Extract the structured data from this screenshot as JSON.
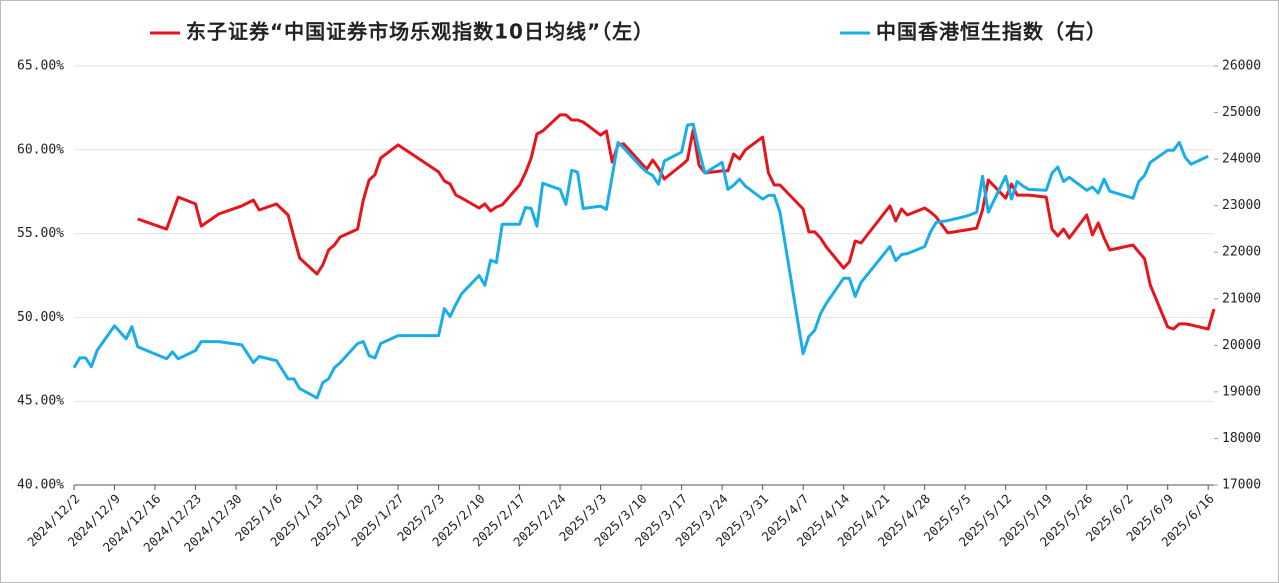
{
  "chart_data": {
    "type": "line",
    "x": [
      "2024/12/2",
      "2024/12/3",
      "2024/12/4",
      "2024/12/5",
      "2024/12/6",
      "2024/12/9",
      "2024/12/11",
      "2024/12/12",
      "2024/12/13",
      "2024/12/18",
      "2024/12/19",
      "2024/12/20",
      "2024/12/23",
      "2024/12/24",
      "2024/12/27",
      "2024/12/31",
      "2025/1/2",
      "2025/1/3",
      "2025/1/6",
      "2025/1/8",
      "2025/1/9",
      "2025/1/10",
      "2025/1/13",
      "2025/1/14",
      "2025/1/15",
      "2025/1/16",
      "2025/1/17",
      "2025/1/20",
      "2025/1/21",
      "2025/1/22",
      "2025/1/23",
      "2025/1/24",
      "2025/1/27",
      "2025/2/3",
      "2025/2/4",
      "2025/2/5",
      "2025/2/6",
      "2025/2/7",
      "2025/2/10",
      "2025/2/11",
      "2025/2/12",
      "2025/2/13",
      "2025/2/14",
      "2025/2/17",
      "2025/2/18",
      "2025/2/19",
      "2025/2/20",
      "2025/2/21",
      "2025/2/24",
      "2025/2/25",
      "2025/2/26",
      "2025/2/27",
      "2025/2/28",
      "2025/3/3",
      "2025/3/4",
      "2025/3/5",
      "2025/3/6",
      "2025/3/7",
      "2025/3/10",
      "2025/3/11",
      "2025/3/12",
      "2025/3/13",
      "2025/3/14",
      "2025/3/17",
      "2025/3/18",
      "2025/3/19",
      "2025/3/20",
      "2025/3/21",
      "2025/3/24",
      "2025/3/25",
      "2025/3/26",
      "2025/3/27",
      "2025/3/28",
      "2025/3/31",
      "2025/4/1",
      "2025/4/2",
      "2025/4/3",
      "2025/4/7",
      "2025/4/8",
      "2025/4/9",
      "2025/4/10",
      "2025/4/11",
      "2025/4/14",
      "2025/4/15",
      "2025/4/16",
      "2025/4/17",
      "2025/4/22",
      "2025/4/23",
      "2025/4/24",
      "2025/4/25",
      "2025/4/28",
      "2025/4/29",
      "2025/4/30",
      "2025/5/2",
      "2025/5/5",
      "2025/5/6",
      "2025/5/7",
      "2025/5/8",
      "2025/5/9",
      "2025/5/12",
      "2025/5/13",
      "2025/5/14",
      "2025/5/15",
      "2025/5/16",
      "2025/5/19",
      "2025/5/20",
      "2025/5/21",
      "2025/5/22",
      "2025/5/23",
      "2025/5/26",
      "2025/5/27",
      "2025/5/28",
      "2025/5/29",
      "2025/5/30",
      "2025/6/3",
      "2025/6/4",
      "2025/6/5",
      "2025/6/6",
      "2025/6/9",
      "2025/6/10",
      "2025/6/11",
      "2025/6/12",
      "2025/6/13",
      "2025/6/16",
      "2025/6/17"
    ],
    "xlim": [
      "2024/12/2",
      "2025/6/17"
    ],
    "xticks": [
      "2024/12/2",
      "2024/12/9",
      "2024/12/16",
      "2024/12/23",
      "2024/12/30",
      "2025/1/6",
      "2025/1/13",
      "2025/1/20",
      "2025/1/27",
      "2025/2/3",
      "2025/2/10",
      "2025/2/17",
      "2025/2/24",
      "2025/3/3",
      "2025/3/10",
      "2025/3/17",
      "2025/3/24",
      "2025/3/31",
      "2025/4/7",
      "2025/4/14",
      "2025/4/21",
      "2025/4/28",
      "2025/5/5",
      "2025/5/12",
      "2025/5/19",
      "2025/5/26",
      "2025/6/2",
      "2025/6/9",
      "2025/6/16"
    ],
    "ylim": [
      40,
      65
    ],
    "yticks": [
      {
        "value": 40,
        "label": "40.00%"
      },
      {
        "value": 45,
        "label": "45.00%"
      },
      {
        "value": 50,
        "label": "50.00%"
      },
      {
        "value": 55,
        "label": "55.00%"
      },
      {
        "value": 60,
        "label": "60.00%"
      },
      {
        "value": 65,
        "label": "65.00%"
      }
    ],
    "y2lim": [
      17000,
      26000
    ],
    "y2ticks": [
      17000,
      18000,
      19000,
      20000,
      21000,
      22000,
      23000,
      24000,
      25000,
      26000
    ],
    "grid": true,
    "legend": "top",
    "series": [
      {
        "name": "东子证券“中国证券市场乐观指数10日均线”（左）",
        "color": "#e8141c",
        "values": [
          null,
          null,
          null,
          null,
          null,
          null,
          null,
          null,
          55.87,
          55.27,
          56.23,
          57.18,
          56.77,
          55.45,
          56.17,
          56.65,
          57.0,
          56.41,
          56.77,
          56.11,
          54.8,
          53.54,
          52.59,
          53.13,
          54.02,
          54.32,
          54.8,
          55.27,
          57.0,
          58.2,
          58.5,
          59.51,
          60.29,
          58.68,
          58.14,
          57.96,
          57.3,
          57.12,
          56.53,
          56.77,
          56.35,
          56.59,
          56.71,
          57.9,
          58.62,
          59.51,
          60.94,
          61.12,
          62.08,
          62.08,
          61.78,
          61.78,
          61.66,
          60.88,
          61.12,
          59.27,
          60.29,
          60.35,
          59.21,
          58.85,
          59.39,
          58.91,
          58.26,
          59.09,
          59.39,
          61.18,
          59.09,
          58.62,
          58.74,
          58.74,
          59.75,
          59.45,
          59.99,
          60.76,
          58.62,
          57.9,
          57.9,
          56.47,
          55.1,
          55.1,
          54.74,
          54.2,
          52.95,
          53.31,
          54.56,
          54.44,
          56.65,
          55.75,
          56.47,
          56.11,
          56.53,
          56.29,
          55.99,
          55.04,
          55.21,
          55.27,
          55.33,
          56.41,
          58.2,
          57.12,
          57.96,
          57.3,
          57.3,
          57.3,
          57.18,
          55.27,
          54.86,
          55.27,
          54.74,
          56.11,
          54.92,
          55.63,
          54.74,
          54.02,
          54.32,
          53.9,
          53.49,
          51.93,
          49.43,
          49.31,
          49.61,
          49.61,
          49.55,
          49.31,
          50.5
        ]
      },
      {
        "name": "中国香港恒生指数（右）",
        "color": "#1aaee8",
        "axis": "y2",
        "values": [
          19520,
          19730,
          19730,
          19540,
          19890,
          20420,
          20140,
          20400,
          19970,
          19710,
          19860,
          19710,
          19890,
          20080,
          20080,
          20010,
          19630,
          19760,
          19670,
          19280,
          19280,
          19070,
          18870,
          19200,
          19280,
          19520,
          19630,
          20040,
          20080,
          19780,
          19730,
          20040,
          20210,
          20210,
          20790,
          20620,
          20880,
          21110,
          21500,
          21290,
          21830,
          21780,
          22600,
          22600,
          22960,
          22940,
          22560,
          23480,
          23350,
          23030,
          23760,
          23720,
          22940,
          22990,
          22920,
          23630,
          24360,
          24240,
          23830,
          23720,
          23650,
          23460,
          23960,
          24150,
          24730,
          24750,
          24190,
          23700,
          23930,
          23350,
          23440,
          23570,
          23420,
          23140,
          23220,
          23220,
          22860,
          19820,
          20190,
          20320,
          20680,
          20900,
          21440,
          21440,
          21050,
          21350,
          22120,
          21820,
          21950,
          21970,
          22120,
          22430,
          22640,
          22680,
          22770,
          22810,
          22860,
          23630,
          22860,
          23630,
          23140,
          23520,
          23420,
          23350,
          23330,
          23700,
          23830,
          23520,
          23610,
          23330,
          23400,
          23270,
          23570,
          23310,
          23160,
          23520,
          23650,
          23930,
          24190,
          24190,
          24360,
          24040,
          23890,
          24060,
          null
        ]
      }
    ]
  }
}
